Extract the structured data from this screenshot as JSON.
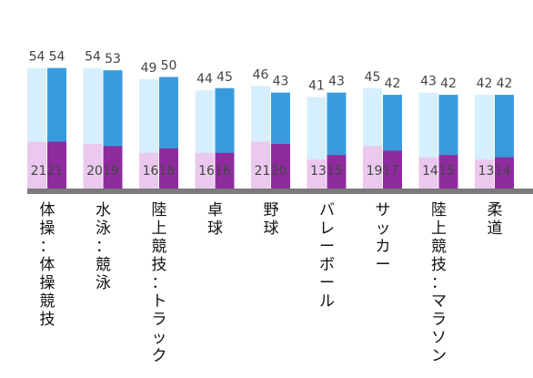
{
  "chart_data": {
    "type": "bar",
    "categories": [
      "体操：体操競技",
      "水泳：競泳",
      "陸上競技：トラック",
      "卓球",
      "野球",
      "バレーボール",
      "サッカー",
      "陸上競技：マラソン",
      "柔道"
    ],
    "series": [
      {
        "values": [
          54,
          54,
          49,
          44,
          46,
          41,
          45,
          43,
          42
        ],
        "color": "#d6efff"
      },
      {
        "values": [
          54,
          53,
          50,
          45,
          43,
          43,
          42,
          42,
          42
        ],
        "color": "#3a9bdc"
      },
      {
        "values": [
          21,
          20,
          16,
          16,
          21,
          13,
          19,
          14,
          13
        ],
        "color": "#ebc8ee"
      },
      {
        "values": [
          21,
          19,
          18,
          16,
          20,
          15,
          17,
          15,
          14
        ],
        "color": "#8e2c9e"
      }
    ],
    "ylim": [
      0,
      60
    ],
    "axis_color": "#7b7b7b",
    "grid": false,
    "legend": "none"
  }
}
